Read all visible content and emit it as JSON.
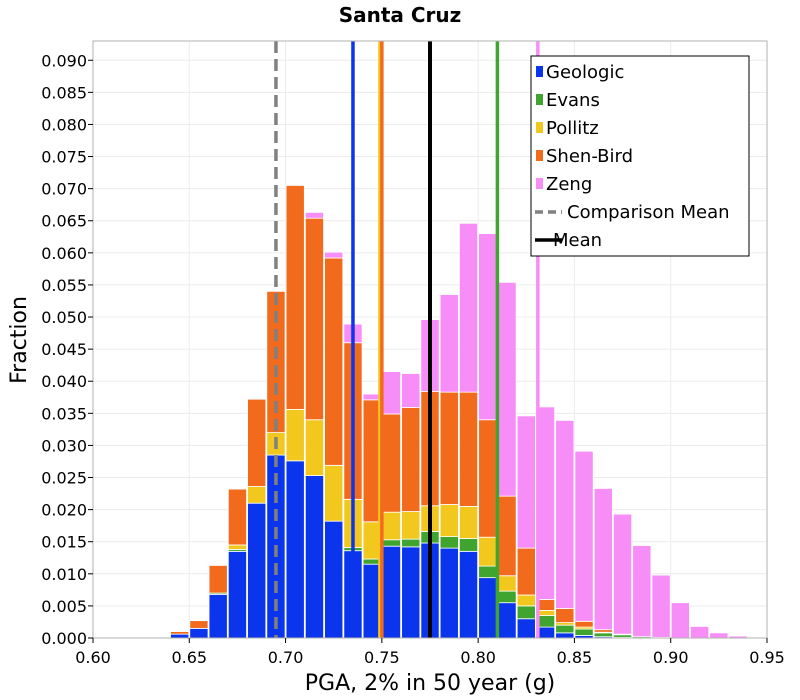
{
  "chart_data": {
    "type": "bar",
    "stacked": true,
    "title": "Santa Cruz",
    "xlabel": "PGA, 2% in 50 year (g)",
    "ylabel": "Fraction",
    "xlim": [
      0.6,
      0.95
    ],
    "ylim": [
      0.0,
      0.093
    ],
    "xticks": [
      "0.60",
      "0.65",
      "0.70",
      "0.75",
      "0.80",
      "0.85",
      "0.90",
      "0.95"
    ],
    "yticks": [
      "0.000",
      "0.005",
      "0.010",
      "0.015",
      "0.020",
      "0.025",
      "0.030",
      "0.035",
      "0.040",
      "0.045",
      "0.050",
      "0.055",
      "0.060",
      "0.065",
      "0.070",
      "0.075",
      "0.080",
      "0.085",
      "0.090"
    ],
    "grid": true,
    "legend_position": "top-right",
    "bin_width": 0.01,
    "bins": [
      0.63,
      0.64,
      0.65,
      0.66,
      0.67,
      0.68,
      0.69,
      0.7,
      0.71,
      0.72,
      0.73,
      0.74,
      0.75,
      0.76,
      0.77,
      0.78,
      0.79,
      0.8,
      0.81,
      0.82,
      0.83,
      0.84,
      0.85,
      0.86,
      0.87,
      0.88,
      0.89,
      0.9,
      0.91,
      0.92,
      0.93
    ],
    "series": [
      {
        "name": "Geologic",
        "color": "#0b35ec",
        "values": [
          0.0001,
          0.0006,
          0.0015,
          0.0068,
          0.0135,
          0.021,
          0.0285,
          0.0276,
          0.0253,
          0.0182,
          0.0136,
          0.0115,
          0.0143,
          0.0142,
          0.0148,
          0.014,
          0.0135,
          0.0094,
          0.0055,
          0.003,
          0.0017,
          0.0008,
          0.0004,
          0.0002,
          0.0001,
          0.0,
          0.0,
          0.0,
          0.0,
          0.0,
          0.0
        ]
      },
      {
        "name": "Evans",
        "color": "#3fa52f",
        "values": [
          0.0,
          0.0,
          0.0,
          0.0002,
          0.0003,
          0.0,
          0.0,
          0.0,
          0.0,
          0.0,
          0.0005,
          0.0008,
          0.001,
          0.0012,
          0.0018,
          0.0018,
          0.002,
          0.0018,
          0.0018,
          0.002,
          0.0018,
          0.0012,
          0.001,
          0.0006,
          0.0004,
          0.0002,
          0.0001,
          0.0,
          0.0,
          0.0,
          0.0
        ]
      },
      {
        "name": "Pollitz",
        "color": "#f2c81f",
        "values": [
          0.0,
          0.0,
          0.0,
          0.0,
          0.0007,
          0.0026,
          0.0035,
          0.008,
          0.0087,
          0.0087,
          0.0075,
          0.0058,
          0.0043,
          0.0043,
          0.004,
          0.005,
          0.005,
          0.0045,
          0.0024,
          0.0017,
          0.0008,
          0.0004,
          0.0003,
          0.0001,
          0.0,
          0.0,
          0.0,
          0.0,
          0.0,
          0.0,
          0.0
        ]
      },
      {
        "name": "Shen-Bird",
        "color": "#f26b1d",
        "values": [
          0.0001,
          0.0004,
          0.0012,
          0.0043,
          0.0087,
          0.0136,
          0.022,
          0.0349,
          0.0314,
          0.0323,
          0.0244,
          0.019,
          0.0153,
          0.0162,
          0.0178,
          0.0175,
          0.0178,
          0.0183,
          0.0124,
          0.0073,
          0.0017,
          0.0022,
          0.0009,
          0.0004,
          0.0001,
          0.0,
          0.0,
          0.0,
          0.0,
          0.0,
          0.0
        ]
      },
      {
        "name": "Zeng",
        "color": "#f78ef7",
        "values": [
          0.0,
          0.0,
          0.0,
          0.0,
          0.0,
          0.0,
          0.0,
          0.0,
          0.0009,
          0.0009,
          0.0029,
          0.0009,
          0.0066,
          0.0053,
          0.0112,
          0.0152,
          0.0263,
          0.029,
          0.0333,
          0.0206,
          0.03,
          0.0293,
          0.0265,
          0.022,
          0.0187,
          0.0142,
          0.0097,
          0.0055,
          0.0018,
          0.0008,
          0.0003
        ]
      }
    ],
    "vertical_lines": [
      {
        "series": "Geologic",
        "x": 0.735,
        "color": "#0b35ec",
        "style": "solid"
      },
      {
        "series": "Pollitz",
        "x": 0.749,
        "color": "#f2c81f",
        "style": "solid"
      },
      {
        "series": "Shen-Bird",
        "x": 0.75,
        "color": "#f26b1d",
        "style": "solid"
      },
      {
        "series": "Evans",
        "x": 0.81,
        "color": "#3fa52f",
        "style": "solid"
      },
      {
        "series": "Zeng",
        "x": 0.831,
        "color": "#f78ef7",
        "style": "solid"
      },
      {
        "series": "Mean",
        "x": 0.775,
        "color": "#000000",
        "style": "solid"
      },
      {
        "series": "Comparison Mean",
        "x": 0.695,
        "color": "#808080",
        "style": "dashed"
      }
    ],
    "legend": [
      {
        "label": "Geologic",
        "color": "#0b35ec",
        "kind": "patch"
      },
      {
        "label": "Evans",
        "color": "#3fa52f",
        "kind": "patch"
      },
      {
        "label": "Pollitz",
        "color": "#f2c81f",
        "kind": "patch"
      },
      {
        "label": "Shen-Bird",
        "color": "#f26b1d",
        "kind": "patch"
      },
      {
        "label": "Zeng",
        "color": "#f78ef7",
        "kind": "patch"
      },
      {
        "label": "Comparison Mean",
        "color": "#808080",
        "kind": "dashed-line"
      },
      {
        "label": "Mean",
        "color": "#000000",
        "kind": "line"
      }
    ]
  }
}
